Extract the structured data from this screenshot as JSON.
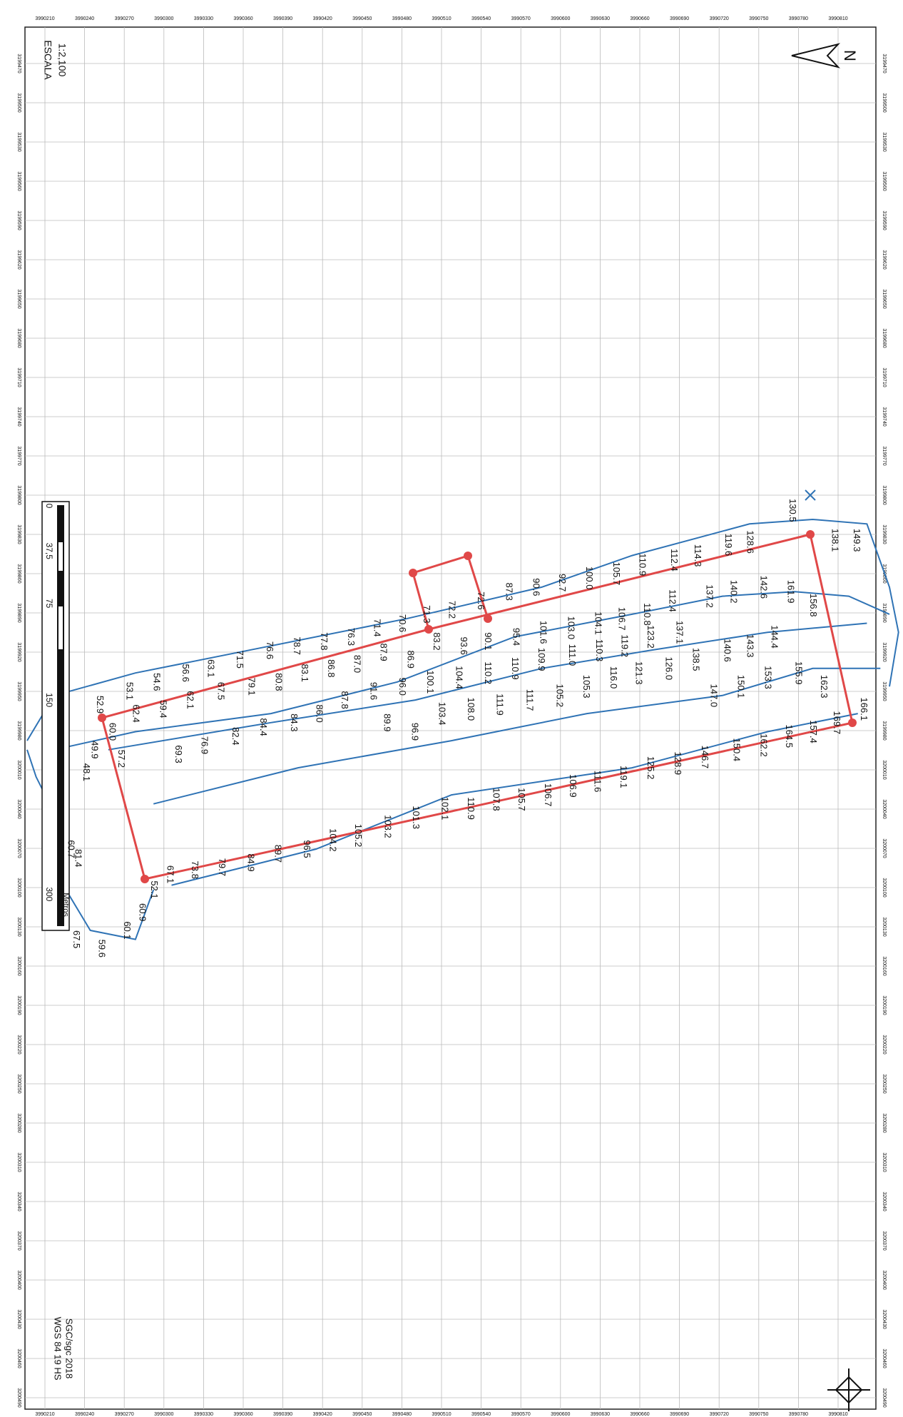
{
  "header": {
    "scale": "1:2,100",
    "scale_caption": "ESCALA",
    "datum": "WGS 84 19 HS",
    "credit": "SGC/sgc 2018"
  },
  "scale_bar": {
    "labels": [
      "0",
      "37,5",
      "75",
      "150",
      "300"
    ],
    "unit": "Metros"
  },
  "easting_labels": [
    "3990210",
    "3990240",
    "3990270",
    "3990300",
    "3990330",
    "3990360",
    "3990390",
    "3990420",
    "3990450",
    "3990480",
    "3990510",
    "3990540",
    "3990570",
    "3990600",
    "3990630",
    "3990660",
    "3990690",
    "3990720",
    "3990750",
    "3990780",
    "3990810"
  ],
  "northing_labels": [
    "3199470",
    "3199500",
    "3199530",
    "3199560",
    "3199590",
    "3199620",
    "3199650",
    "3199680",
    "3199710",
    "3199740",
    "3199770",
    "3199800",
    "3199830",
    "3199860",
    "3199890",
    "3199920",
    "3199950",
    "3199980",
    "3200010",
    "3200040",
    "3200070",
    "3200100",
    "3200130",
    "3200160",
    "3200190",
    "3200220",
    "3200250",
    "3200280",
    "3200310",
    "3200340",
    "3200370",
    "3200400",
    "3200430",
    "3200460",
    "3200490"
  ],
  "north": "N",
  "soundings": [
    "130.5",
    "138.1",
    "149.3",
    "128.6",
    "119.6",
    "114.3",
    "112.4",
    "110.9",
    "105.7",
    "100.0",
    "92.7",
    "90.6",
    "87.3",
    "72.6",
    "72.2",
    "71.3",
    "70.6",
    "71.4",
    "76.3",
    "77.8",
    "78.7",
    "76.6",
    "71.5",
    "63.1",
    "56.6",
    "54.6",
    "53.1",
    "52.9",
    "83.2",
    "93.6",
    "90.1",
    "95.4",
    "101.6",
    "103.0",
    "104.1",
    "106.7",
    "110.8",
    "112.4",
    "137.2",
    "140.2",
    "142.6",
    "161.9",
    "156.8",
    "86.9",
    "87.9",
    "87.0",
    "86.8",
    "83.1",
    "80.8",
    "79.1",
    "67.5",
    "62.1",
    "59.4",
    "62.4",
    "60.0",
    "96.0",
    "100.1",
    "104.4",
    "110.2",
    "110.9",
    "109.9",
    "111.0",
    "110.3",
    "119.2",
    "123.2",
    "137.1",
    "140.6",
    "143.3",
    "144.4",
    "91.6",
    "87.8",
    "86.0",
    "84.3",
    "84.4",
    "82.4",
    "76.9",
    "69.3",
    "57.2",
    "49.9",
    "48.1",
    "89.9",
    "96.9",
    "103.4",
    "108.0",
    "111.9",
    "111.7",
    "105.2",
    "105.3",
    "116.0",
    "121.3",
    "126.0",
    "138.5",
    "147.0",
    "150.1",
    "153.3",
    "155.9",
    "162.3",
    "166.1",
    "169.7",
    "157.4",
    "164.5",
    "162.2",
    "150.4",
    "146.7",
    "128.9",
    "125.2",
    "119.1",
    "111.6",
    "106.9",
    "106.7",
    "105.7",
    "107.8",
    "110.9",
    "102.1",
    "101.3",
    "103.2",
    "105.2",
    "104.2",
    "96.5",
    "89.7",
    "84.9",
    "79.7",
    "73.8",
    "67.1",
    "52.1",
    "60.9",
    "60.1",
    "59.6",
    "67.5",
    "81.4",
    "60.7"
  ]
}
